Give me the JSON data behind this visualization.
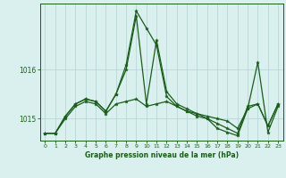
{
  "background_color": "#daf0ee",
  "grid_color": "#b8d8d8",
  "line_color": "#1a5c1a",
  "title": "Graphe pression niveau de la mer (hPa)",
  "xlim": [
    -0.5,
    23.5
  ],
  "ylim": [
    1014.55,
    1017.35
  ],
  "yticks": [
    1015,
    1016
  ],
  "xticks": [
    0,
    1,
    2,
    3,
    4,
    5,
    6,
    7,
    8,
    9,
    10,
    11,
    12,
    13,
    14,
    15,
    16,
    17,
    18,
    19,
    20,
    21,
    22,
    23
  ],
  "series": [
    {
      "y": [
        1014.7,
        1014.7,
        1015.0,
        1015.25,
        1015.35,
        1015.3,
        1015.1,
        1015.3,
        1015.35,
        1015.4,
        1015.25,
        1015.3,
        1015.35,
        1015.25,
        1015.15,
        1015.1,
        1015.05,
        1015.0,
        1014.95,
        1014.8,
        1015.2,
        1015.3,
        1014.85,
        1015.3
      ],
      "lw": 0.9
    },
    {
      "y": [
        1014.7,
        1014.7,
        1015.05,
        1015.3,
        1015.4,
        1015.35,
        1015.15,
        1015.5,
        1016.0,
        1017.1,
        1015.3,
        1016.6,
        1015.55,
        1015.3,
        1015.2,
        1015.1,
        1015.0,
        1014.8,
        1014.72,
        1014.65,
        1015.2,
        1016.15,
        1014.72,
        1015.25
      ],
      "lw": 0.9
    },
    {
      "y": [
        1014.7,
        1014.7,
        1015.05,
        1015.3,
        1015.4,
        1015.35,
        1015.15,
        1015.5,
        1016.1,
        1017.2,
        1016.85,
        1016.5,
        1015.45,
        1015.25,
        1015.15,
        1015.05,
        1015.0,
        1014.9,
        1014.8,
        1014.7,
        1015.25,
        1015.3,
        1014.85,
        1015.3
      ],
      "lw": 0.9
    }
  ]
}
